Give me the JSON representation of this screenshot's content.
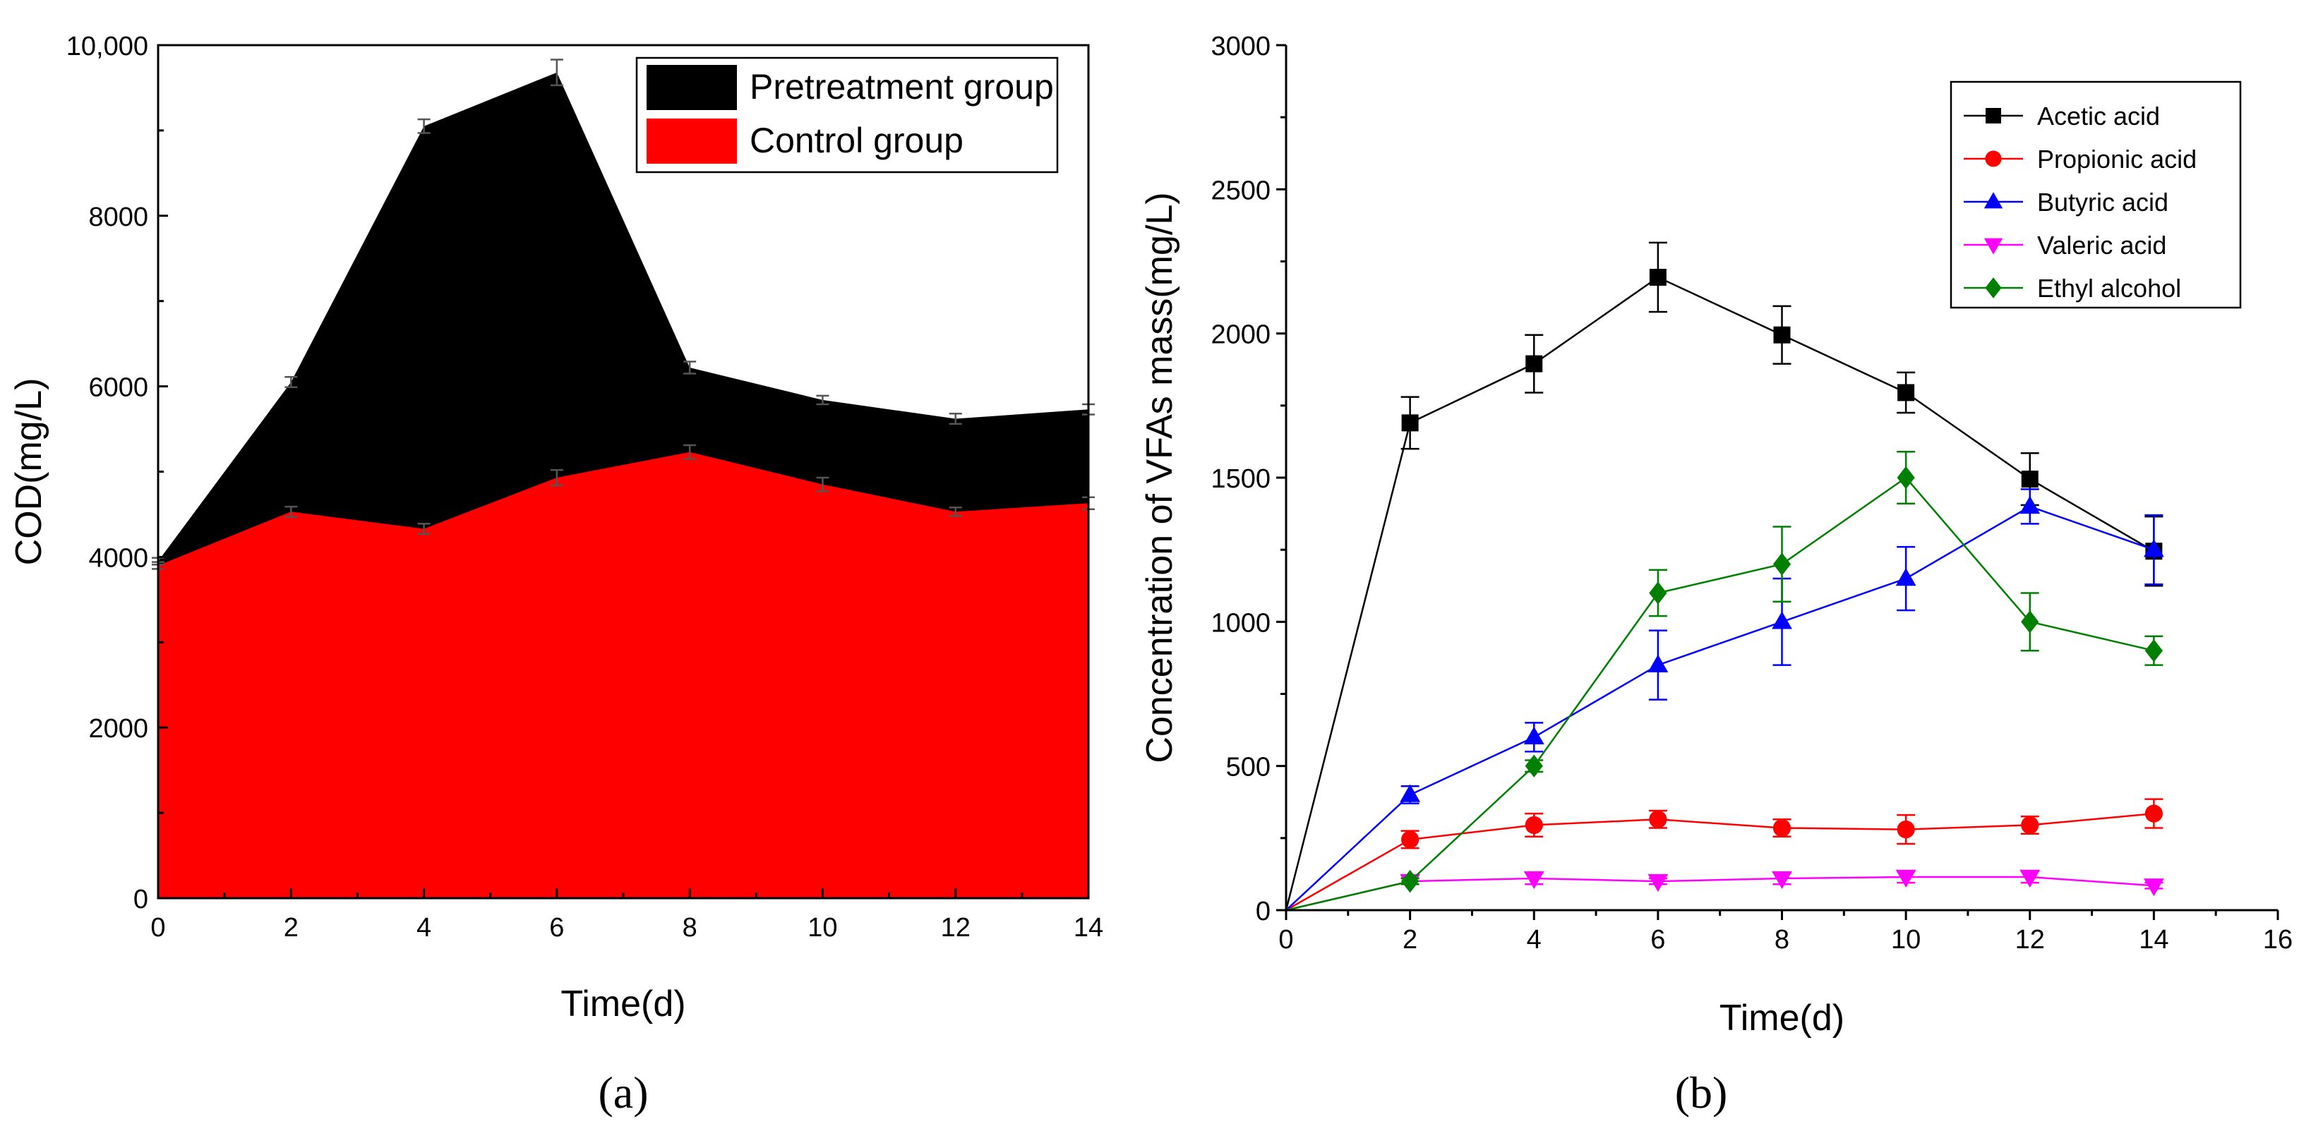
{
  "chart_data": [
    {
      "panel_label": "(a)",
      "type": "area",
      "stacked": false,
      "xlabel": "Time(d)",
      "ylabel": "COD(mg/L)",
      "xlim": [
        0,
        14
      ],
      "ylim": [
        0,
        10000
      ],
      "x_ticks": [
        0,
        2,
        4,
        6,
        8,
        10,
        12,
        14
      ],
      "x_tick_labels": [
        "0",
        "2",
        "4",
        "6",
        "8",
        "10",
        "12",
        "14"
      ],
      "y_ticks": [
        0,
        2000,
        4000,
        6000,
        8000,
        10000
      ],
      "y_tick_labels": [
        "0",
        "2000",
        "4000",
        "6000",
        "8000",
        "10,000"
      ],
      "grid": false,
      "legend_position": "top-right",
      "x": [
        0,
        2,
        4,
        6,
        8,
        10,
        12,
        14
      ],
      "series": [
        {
          "name": "Pretreatment group",
          "color": "#000000",
          "values": [
            3950,
            6050,
            9050,
            9680,
            6220,
            5840,
            5620,
            5730
          ],
          "errors": [
            40,
            60,
            80,
            150,
            70,
            50,
            60,
            60
          ]
        },
        {
          "name": "Control group",
          "color": "#ff0000",
          "values": [
            3900,
            4530,
            4330,
            4930,
            5230,
            4850,
            4530,
            4630
          ],
          "errors": [
            40,
            60,
            60,
            90,
            80,
            80,
            50,
            70
          ]
        }
      ]
    },
    {
      "panel_label": "(b)",
      "type": "line",
      "xlabel": "Time(d)",
      "ylabel": "Concentration of VFAs mass(mg/L)",
      "xlim": [
        0,
        16
      ],
      "ylim": [
        0,
        3000
      ],
      "x_ticks": [
        0,
        2,
        4,
        6,
        8,
        10,
        12,
        14,
        16
      ],
      "x_tick_labels": [
        "0",
        "2",
        "4",
        "6",
        "8",
        "10",
        "12",
        "14",
        "16"
      ],
      "y_ticks": [
        0,
        500,
        1000,
        1500,
        2000,
        2500,
        3000
      ],
      "y_tick_labels": [
        "0",
        "500",
        "1000",
        "1500",
        "2000",
        "2500",
        "3000"
      ],
      "grid": false,
      "legend_position": "top-right",
      "x": [
        0,
        2,
        4,
        6,
        8,
        10,
        12,
        14
      ],
      "series": [
        {
          "name": "Acetic acid",
          "color": "#000000",
          "marker": "square",
          "values": [
            0,
            1690,
            1895,
            2195,
            1995,
            1795,
            1495,
            1245
          ],
          "errors": [
            0,
            90,
            100,
            120,
            100,
            70,
            90,
            120
          ]
        },
        {
          "name": "Propionic acid",
          "color": "#ff0000",
          "marker": "circle",
          "values": [
            0,
            245,
            295,
            315,
            285,
            280,
            295,
            335
          ],
          "errors": [
            0,
            30,
            40,
            30,
            30,
            50,
            30,
            50
          ]
        },
        {
          "name": "Butyric acid",
          "color": "#0000ff",
          "marker": "triangle-up",
          "values": [
            0,
            400,
            600,
            850,
            1000,
            1150,
            1400,
            1250
          ],
          "errors": [
            0,
            30,
            50,
            120,
            150,
            110,
            60,
            120
          ]
        },
        {
          "name": "Valeric acid",
          "color": "#ff00ff",
          "marker": "triangle-down",
          "values": [
            0,
            100,
            110,
            100,
            110,
            115,
            115,
            85
          ],
          "errors": [
            0,
            10,
            20,
            10,
            20,
            20,
            20,
            10
          ]
        },
        {
          "name": "Ethyl alcohol",
          "color": "#008000",
          "marker": "diamond",
          "values": [
            0,
            100,
            500,
            1100,
            1200,
            1500,
            1000,
            900
          ],
          "errors": [
            0,
            10,
            20,
            80,
            130,
            90,
            100,
            50
          ]
        }
      ]
    }
  ]
}
